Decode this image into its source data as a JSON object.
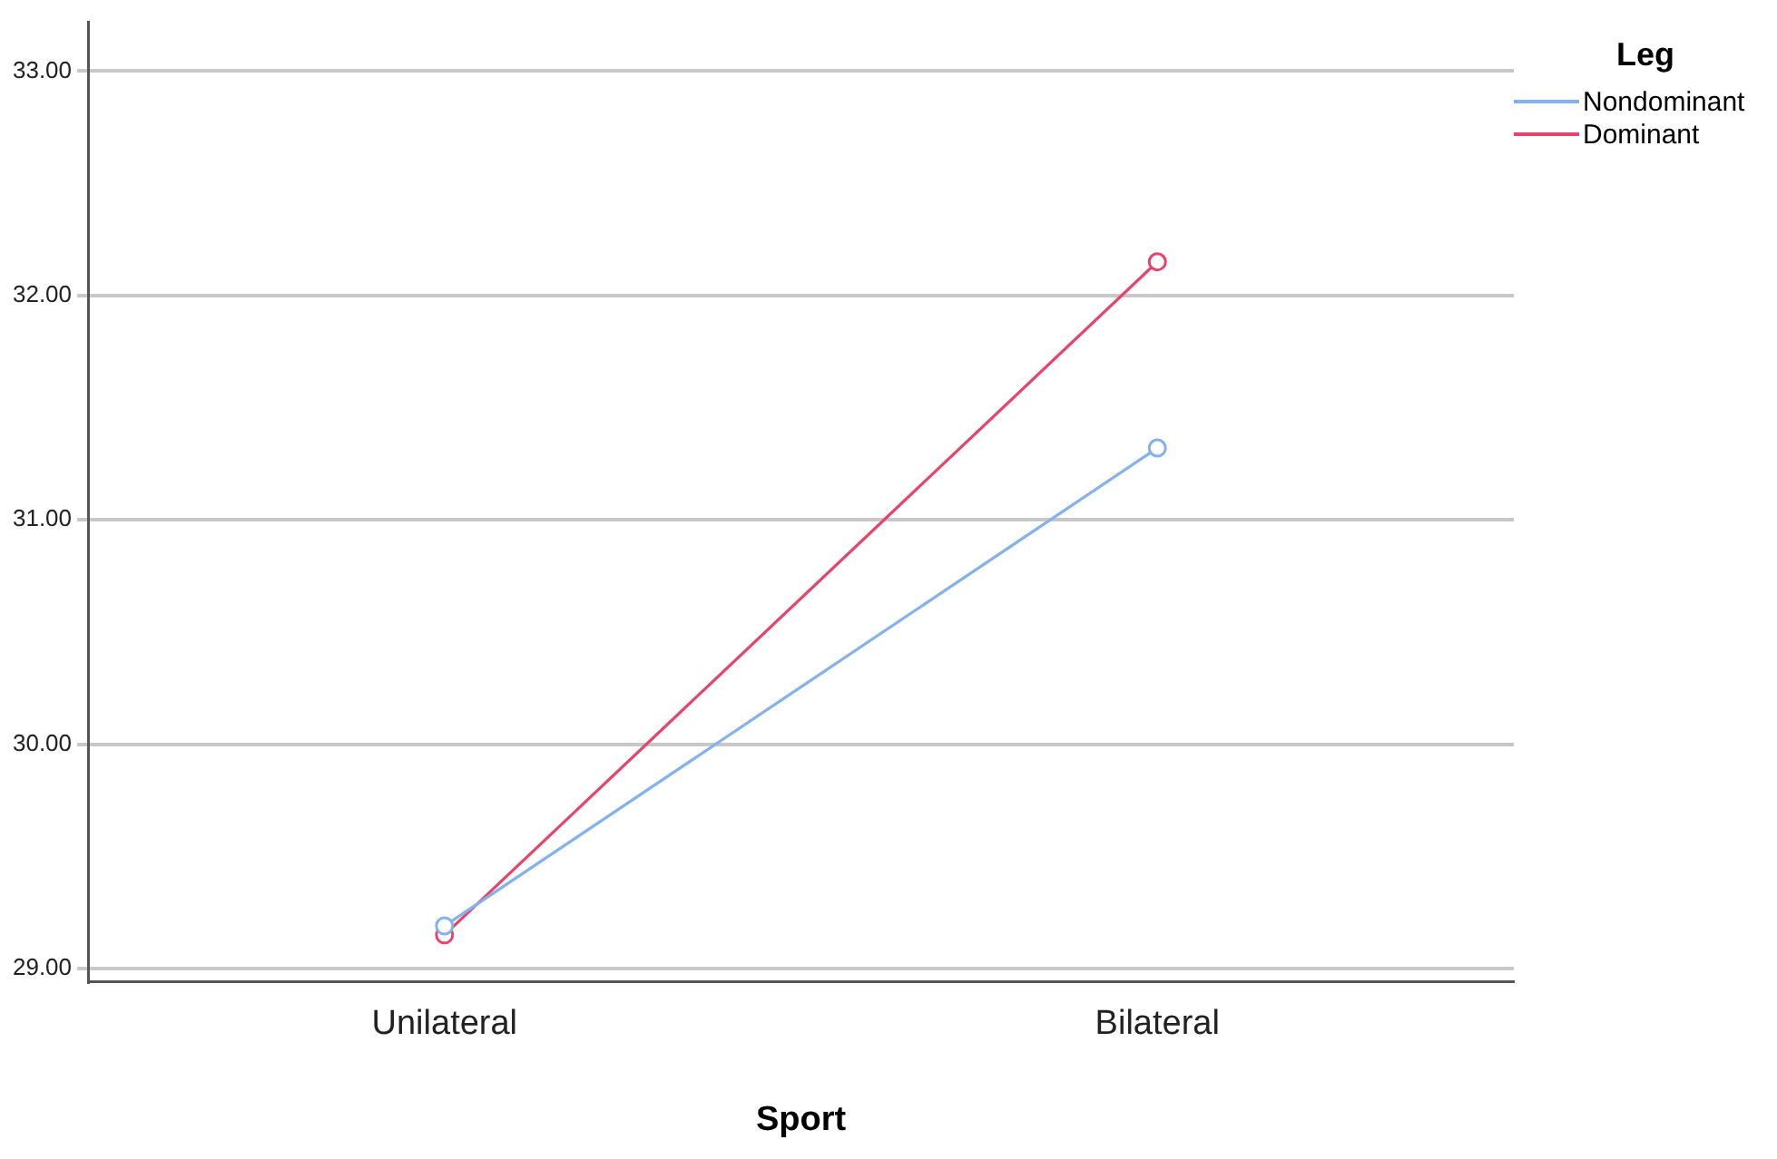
{
  "chart_data": {
    "type": "line",
    "xlabel": "Sport",
    "legend_title": "Leg",
    "categories": [
      "Unilateral",
      "Bilateral"
    ],
    "series": [
      {
        "name": "Nondominant",
        "color": "#83b2ec",
        "values": [
          29.19,
          31.32
        ]
      },
      {
        "name": "Dominant",
        "color": "#e8436a",
        "values": [
          29.15,
          32.15
        ]
      }
    ],
    "ylim": [
      28.94,
      33.22
    ],
    "yticks": [
      {
        "value": 29,
        "label": "29.00"
      },
      {
        "value": 30,
        "label": "30.00"
      },
      {
        "value": 31,
        "label": "31.00"
      },
      {
        "value": 32,
        "label": "32.00"
      },
      {
        "value": 33,
        "label": "33.00"
      }
    ],
    "grid": "y",
    "legend": "top right",
    "marker": "circle",
    "line_style": "solid"
  }
}
